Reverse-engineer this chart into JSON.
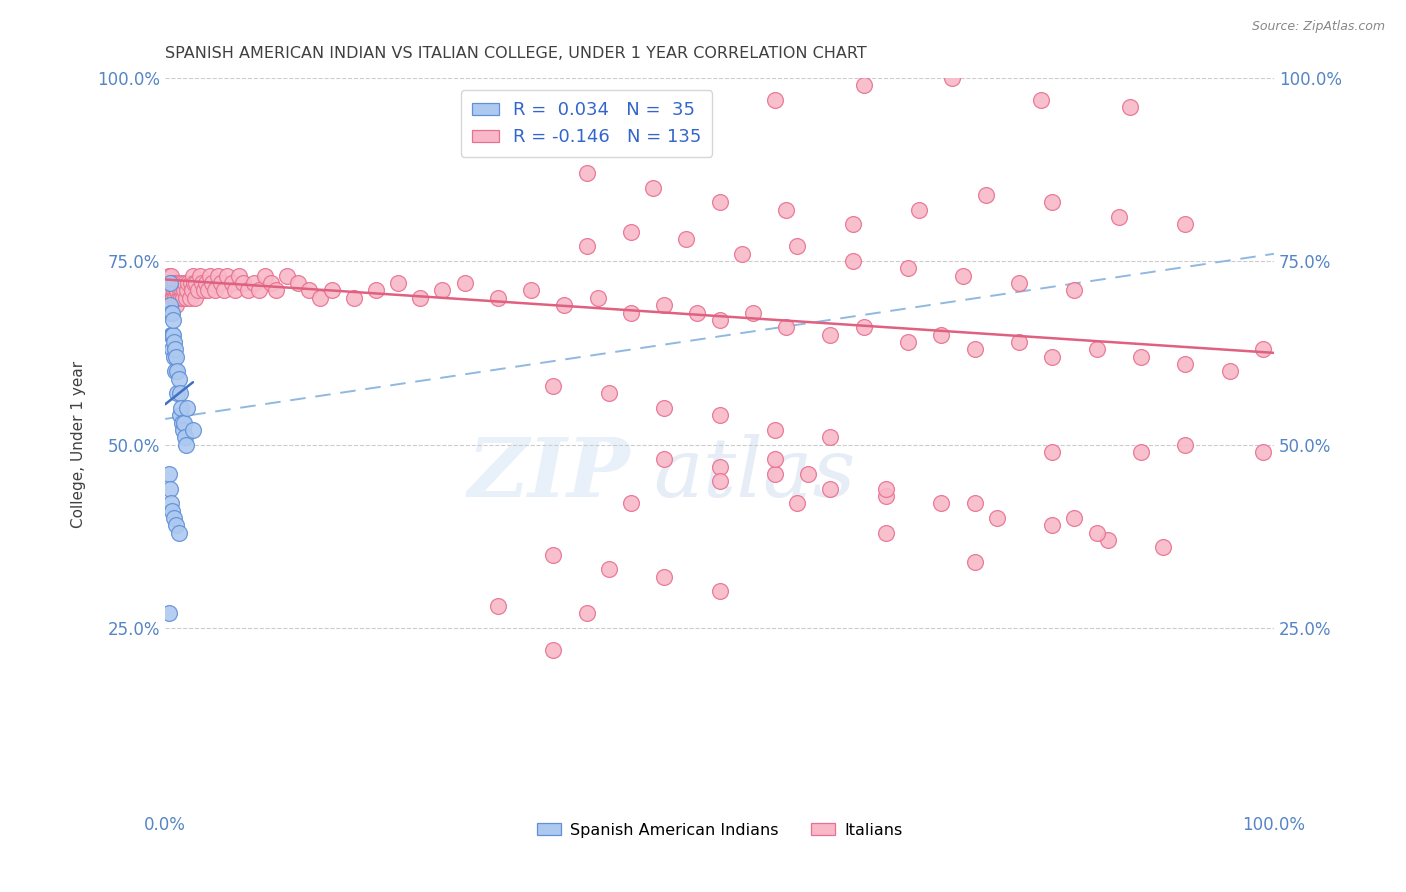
{
  "title": "SPANISH AMERICAN INDIAN VS ITALIAN COLLEGE, UNDER 1 YEAR CORRELATION CHART",
  "source": "Source: ZipAtlas.com",
  "ylabel": "College, Under 1 year",
  "xlim": [
    0,
    1
  ],
  "ylim": [
    0,
    1
  ],
  "R1": 0.034,
  "N1": 35,
  "R2": -0.146,
  "N2": 135,
  "blue_fill": "#adc9f0",
  "blue_edge": "#6090d8",
  "pink_fill": "#f8b8c8",
  "pink_edge": "#e87090",
  "blue_line_color": "#4070c0",
  "pink_line_color": "#e06080",
  "dashed_color": "#90b8e0",
  "bg_color": "#ffffff",
  "grid_color": "#cccccc",
  "axis_tick_color": "#5585c5",
  "title_color": "#404040",
  "source_color": "#888888",
  "ylabel_color": "#404040",
  "blue_x": [
    0.004,
    0.004,
    0.005,
    0.005,
    0.006,
    0.006,
    0.006,
    0.007,
    0.007,
    0.008,
    0.008,
    0.009,
    0.009,
    0.01,
    0.011,
    0.011,
    0.012,
    0.013,
    0.013,
    0.014,
    0.015,
    0.016,
    0.017,
    0.018,
    0.019,
    0.02,
    0.025,
    0.003,
    0.004,
    0.005,
    0.006,
    0.008,
    0.01,
    0.012,
    0.003
  ],
  "blue_y": [
    0.69,
    0.72,
    0.65,
    0.68,
    0.65,
    0.68,
    0.63,
    0.65,
    0.67,
    0.64,
    0.62,
    0.6,
    0.63,
    0.62,
    0.6,
    0.57,
    0.59,
    0.57,
    0.54,
    0.55,
    0.53,
    0.52,
    0.53,
    0.51,
    0.5,
    0.55,
    0.52,
    0.46,
    0.44,
    0.42,
    0.41,
    0.4,
    0.39,
    0.38,
    0.27
  ],
  "pink_x": [
    0.002,
    0.003,
    0.004,
    0.005,
    0.005,
    0.006,
    0.006,
    0.007,
    0.007,
    0.008,
    0.009,
    0.009,
    0.01,
    0.01,
    0.011,
    0.012,
    0.012,
    0.013,
    0.014,
    0.015,
    0.015,
    0.016,
    0.017,
    0.018,
    0.019,
    0.02,
    0.021,
    0.022,
    0.023,
    0.024,
    0.025,
    0.026,
    0.027,
    0.028,
    0.03,
    0.031,
    0.033,
    0.035,
    0.037,
    0.039,
    0.04,
    0.042,
    0.045,
    0.048,
    0.05,
    0.053,
    0.056,
    0.06,
    0.063,
    0.067,
    0.07,
    0.075,
    0.08,
    0.085,
    0.09,
    0.095,
    0.1,
    0.11,
    0.12,
    0.13,
    0.14,
    0.15,
    0.17,
    0.19,
    0.21,
    0.23,
    0.25,
    0.27,
    0.3,
    0.33,
    0.36,
    0.39,
    0.42,
    0.45,
    0.48,
    0.5,
    0.53,
    0.56,
    0.6,
    0.63,
    0.67,
    0.7,
    0.73,
    0.77,
    0.8,
    0.84,
    0.88,
    0.92,
    0.96,
    0.99,
    0.35,
    0.4,
    0.45,
    0.5,
    0.55,
    0.6,
    0.38,
    0.42,
    0.47,
    0.52,
    0.57,
    0.62,
    0.67,
    0.72,
    0.77,
    0.82,
    0.45,
    0.5,
    0.55,
    0.6,
    0.65,
    0.7,
    0.75,
    0.8,
    0.85,
    0.9,
    0.35,
    0.4,
    0.45,
    0.5,
    0.38,
    0.44,
    0.5,
    0.56,
    0.62,
    0.68,
    0.74,
    0.8,
    0.86,
    0.92,
    0.55,
    0.63,
    0.71,
    0.79,
    0.87
  ],
  "pink_y": [
    0.72,
    0.73,
    0.71,
    0.73,
    0.71,
    0.72,
    0.7,
    0.72,
    0.7,
    0.71,
    0.72,
    0.7,
    0.71,
    0.69,
    0.71,
    0.7,
    0.72,
    0.71,
    0.7,
    0.71,
    0.72,
    0.7,
    0.71,
    0.72,
    0.7,
    0.71,
    0.72,
    0.7,
    0.72,
    0.71,
    0.73,
    0.72,
    0.7,
    0.72,
    0.71,
    0.73,
    0.72,
    0.71,
    0.72,
    0.71,
    0.73,
    0.72,
    0.71,
    0.73,
    0.72,
    0.71,
    0.73,
    0.72,
    0.71,
    0.73,
    0.72,
    0.71,
    0.72,
    0.71,
    0.73,
    0.72,
    0.71,
    0.73,
    0.72,
    0.71,
    0.7,
    0.71,
    0.7,
    0.71,
    0.72,
    0.7,
    0.71,
    0.72,
    0.7,
    0.71,
    0.69,
    0.7,
    0.68,
    0.69,
    0.68,
    0.67,
    0.68,
    0.66,
    0.65,
    0.66,
    0.64,
    0.65,
    0.63,
    0.64,
    0.62,
    0.63,
    0.62,
    0.61,
    0.6,
    0.63,
    0.58,
    0.57,
    0.55,
    0.54,
    0.52,
    0.51,
    0.77,
    0.79,
    0.78,
    0.76,
    0.77,
    0.75,
    0.74,
    0.73,
    0.72,
    0.71,
    0.48,
    0.47,
    0.46,
    0.44,
    0.43,
    0.42,
    0.4,
    0.39,
    0.37,
    0.36,
    0.35,
    0.33,
    0.32,
    0.3,
    0.87,
    0.85,
    0.83,
    0.82,
    0.8,
    0.82,
    0.84,
    0.83,
    0.81,
    0.8,
    0.97,
    0.99,
    1.0,
    0.97,
    0.96
  ],
  "pink_x_isolated": [
    0.38,
    0.55,
    0.58,
    0.65,
    0.73,
    0.82,
    0.84,
    0.88,
    0.92,
    0.99,
    0.3,
    0.35,
    0.42,
    0.5,
    0.57,
    0.65,
    0.73,
    0.8
  ],
  "pink_y_isolated": [
    0.27,
    0.48,
    0.46,
    0.44,
    0.42,
    0.4,
    0.38,
    0.49,
    0.5,
    0.49,
    0.28,
    0.22,
    0.42,
    0.45,
    0.42,
    0.38,
    0.34,
    0.49
  ],
  "pink_line_x": [
    0.0,
    1.0
  ],
  "pink_line_y": [
    0.725,
    0.625
  ],
  "blue_line_x": [
    0.0,
    0.025
  ],
  "blue_line_y": [
    0.555,
    0.585
  ],
  "dash_line_x": [
    0.0,
    1.0
  ],
  "dash_line_y": [
    0.535,
    0.76
  ]
}
